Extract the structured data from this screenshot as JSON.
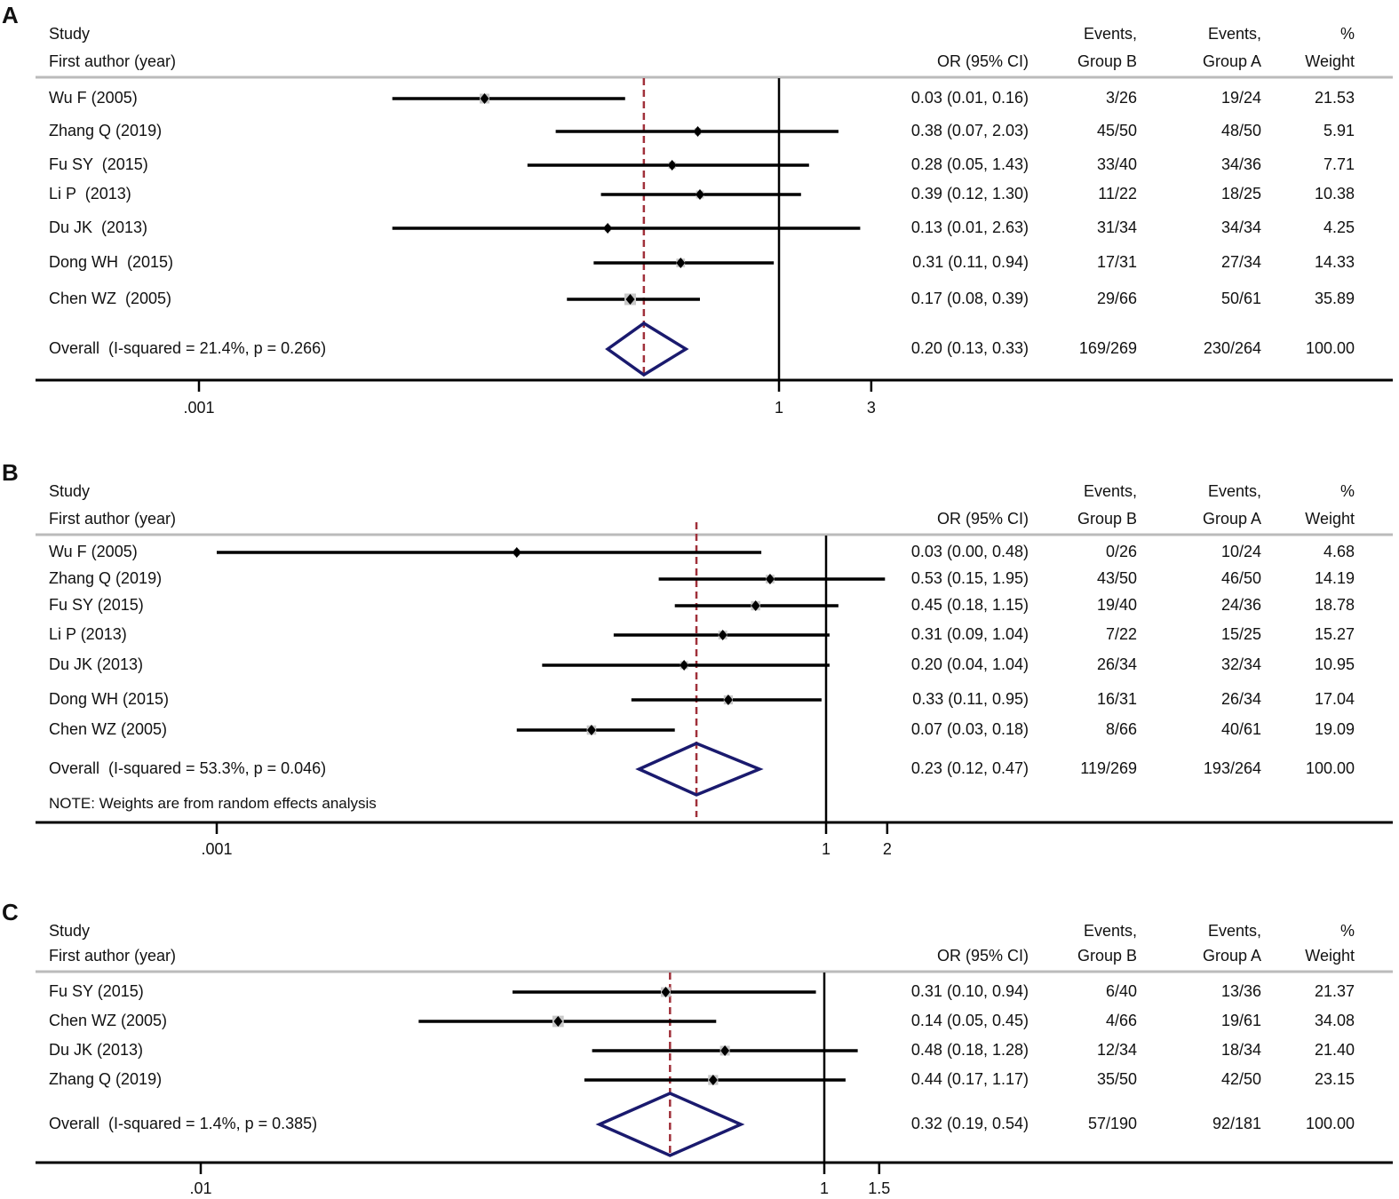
{
  "chart_data": [
    {
      "type": "forest",
      "panel_label": "A",
      "headers": {
        "study_line1": "Study",
        "study_line2": "First author (year)",
        "or": "OR (95% CI)",
        "group_b_line1": "Events,",
        "group_b_line2": "Group B",
        "group_a_line1": "Events,",
        "group_a_line2": "Group A",
        "weight_line1": "%",
        "weight_line2": "Weight"
      },
      "studies": [
        {
          "label": "Wu F (2005)",
          "or": 0.03,
          "lo": 0.01,
          "hi": 0.16,
          "or_text": "0.03 (0.01, 0.16)",
          "group_b": "3/26",
          "group_a": "19/24",
          "weight": "21.53"
        },
        {
          "label": "Zhang Q (2019)",
          "or": 0.38,
          "lo": 0.07,
          "hi": 2.03,
          "or_text": "0.38 (0.07, 2.03)",
          "group_b": "45/50",
          "group_a": "48/50",
          "weight": "5.91"
        },
        {
          "label": "Fu SY  (2015)",
          "or": 0.28,
          "lo": 0.05,
          "hi": 1.43,
          "or_text": "0.28 (0.05, 1.43)",
          "group_b": "33/40",
          "group_a": "34/36",
          "weight": "7.71"
        },
        {
          "label": "Li P  (2013)",
          "or": 0.39,
          "lo": 0.12,
          "hi": 1.3,
          "or_text": "0.39 (0.12, 1.30)",
          "group_b": "11/22",
          "group_a": "18/25",
          "weight": "10.38"
        },
        {
          "label": "Du JK  (2013)",
          "or": 0.13,
          "lo": 0.01,
          "hi": 2.63,
          "or_text": "0.13 (0.01, 2.63)",
          "group_b": "31/34",
          "group_a": "34/34",
          "weight": "4.25"
        },
        {
          "label": "Dong WH  (2015)",
          "or": 0.31,
          "lo": 0.11,
          "hi": 0.94,
          "or_text": "0.31 (0.11, 0.94)",
          "group_b": "17/31",
          "group_a": "27/34",
          "weight": "14.33"
        },
        {
          "label": "Chen WZ  (2005)",
          "or": 0.17,
          "lo": 0.08,
          "hi": 0.39,
          "or_text": "0.17 (0.08, 0.39)",
          "group_b": "29/66",
          "group_a": "50/61",
          "weight": "35.89"
        }
      ],
      "overall": {
        "label": "Overall  (I-squared = 21.4%, p = 0.266)",
        "or": 0.2,
        "lo": 0.13,
        "hi": 0.33,
        "or_text": "0.20 (0.13, 0.33)",
        "group_b": "169/269",
        "group_a": "230/264",
        "weight": "100.00"
      },
      "note": "",
      "axis": {
        "ticks": [
          0.001,
          1,
          3
        ],
        "tick_labels": [
          ".001",
          "1",
          "3"
        ],
        "min": 0.001,
        "max": 3,
        "scale": "log"
      }
    },
    {
      "type": "forest",
      "panel_label": "B",
      "headers": {
        "study_line1": "Study",
        "study_line2": "First author (year)",
        "or": "OR (95% CI)",
        "group_b_line1": "Events,",
        "group_b_line2": "Group B",
        "group_a_line1": "Events,",
        "group_a_line2": "Group A",
        "weight_line1": "%",
        "weight_line2": "Weight"
      },
      "studies": [
        {
          "label": "Wu F (2005)",
          "or": 0.03,
          "lo": 0.0,
          "hi": 0.48,
          "or_text": "0.03 (0.00, 0.48)",
          "group_b": "0/26",
          "group_a": "10/24",
          "weight": "4.68"
        },
        {
          "label": "Zhang Q (2019)",
          "or": 0.53,
          "lo": 0.15,
          "hi": 1.95,
          "or_text": "0.53 (0.15, 1.95)",
          "group_b": "43/50",
          "group_a": "46/50",
          "weight": "14.19"
        },
        {
          "label": "Fu SY (2015)",
          "or": 0.45,
          "lo": 0.18,
          "hi": 1.15,
          "or_text": "0.45 (0.18, 1.15)",
          "group_b": "19/40",
          "group_a": "24/36",
          "weight": "18.78"
        },
        {
          "label": "Li P (2013)",
          "or": 0.31,
          "lo": 0.09,
          "hi": 1.04,
          "or_text": "0.31 (0.09, 1.04)",
          "group_b": "7/22",
          "group_a": "15/25",
          "weight": "15.27"
        },
        {
          "label": "Du JK (2013)",
          "or": 0.2,
          "lo": 0.04,
          "hi": 1.04,
          "or_text": "0.20 (0.04, 1.04)",
          "group_b": "26/34",
          "group_a": "32/34",
          "weight": "10.95"
        },
        {
          "label": "Dong WH (2015)",
          "or": 0.33,
          "lo": 0.11,
          "hi": 0.95,
          "or_text": "0.33 (0.11, 0.95)",
          "group_b": "16/31",
          "group_a": "26/34",
          "weight": "17.04"
        },
        {
          "label": "Chen WZ (2005)",
          "or": 0.07,
          "lo": 0.03,
          "hi": 0.18,
          "or_text": "0.07 (0.03, 0.18)",
          "group_b": "8/66",
          "group_a": "40/61",
          "weight": "19.09"
        }
      ],
      "overall": {
        "label": "Overall  (I-squared = 53.3%, p = 0.046)",
        "or": 0.23,
        "lo": 0.12,
        "hi": 0.47,
        "or_text": "0.23 (0.12, 0.47)",
        "group_b": "119/269",
        "group_a": "193/264",
        "weight": "100.00"
      },
      "note": "NOTE: Weights are from random effects analysis",
      "axis": {
        "ticks": [
          0.001,
          1,
          2
        ],
        "tick_labels": [
          ".001",
          "1",
          "2"
        ],
        "min": 0.001,
        "max": 2,
        "scale": "log"
      }
    },
    {
      "type": "forest",
      "panel_label": "C",
      "headers": {
        "study_line1": "Study",
        "study_line2": "First author (year)",
        "or": "OR (95% CI)",
        "group_b_line1": "Events,",
        "group_b_line2": "Group B",
        "group_a_line1": "Events,",
        "group_a_line2": "Group A",
        "weight_line1": "%",
        "weight_line2": "Weight"
      },
      "studies": [
        {
          "label": "Fu SY (2015)",
          "or": 0.31,
          "lo": 0.1,
          "hi": 0.94,
          "or_text": "0.31 (0.10, 0.94)",
          "group_b": "6/40",
          "group_a": "13/36",
          "weight": "21.37"
        },
        {
          "label": "Chen WZ (2005)",
          "or": 0.14,
          "lo": 0.05,
          "hi": 0.45,
          "or_text": "0.14 (0.05, 0.45)",
          "group_b": "4/66",
          "group_a": "19/61",
          "weight": "34.08"
        },
        {
          "label": "Du JK (2013)",
          "or": 0.48,
          "lo": 0.18,
          "hi": 1.28,
          "or_text": "0.48 (0.18, 1.28)",
          "group_b": "12/34",
          "group_a": "18/34",
          "weight": "21.40"
        },
        {
          "label": "Zhang Q (2019)",
          "or": 0.44,
          "lo": 0.17,
          "hi": 1.17,
          "or_text": "0.44 (0.17, 1.17)",
          "group_b": "35/50",
          "group_a": "42/50",
          "weight": "23.15"
        }
      ],
      "overall": {
        "label": "Overall  (I-squared = 1.4%, p = 0.385)",
        "or": 0.32,
        "lo": 0.19,
        "hi": 0.54,
        "or_text": "0.32 (0.19, 0.54)",
        "group_b": "57/190",
        "group_a": "92/181",
        "weight": "100.00"
      },
      "note": "",
      "axis": {
        "ticks": [
          0.01,
          1,
          1.5
        ],
        "tick_labels": [
          ".01",
          "1",
          "1.5"
        ],
        "min": 0.01,
        "max": 1.5,
        "scale": "log"
      }
    }
  ],
  "colors": {
    "line": "#000000",
    "diamond": "#1a1a6e",
    "overall_ref": "#a0303a",
    "separator": "#bbbbbb"
  }
}
